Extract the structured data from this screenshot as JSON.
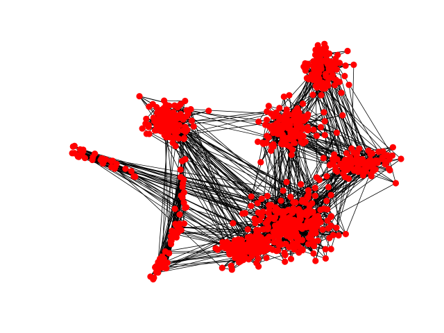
{
  "figure": {
    "background": "#ffffff",
    "node_color": "#ff0000",
    "edge_color": "#000000"
  },
  "graph": {
    "type": "network",
    "node_shape": "circle",
    "clusters": [
      {
        "id": "top-right",
        "size": 110
      },
      {
        "id": "upper-center",
        "size": 150
      },
      {
        "id": "upper-left",
        "size": 120
      },
      {
        "id": "right",
        "size": 110
      },
      {
        "id": "lower-center",
        "size": 230
      },
      {
        "id": "lower-middle",
        "size": 110
      },
      {
        "id": "left-tail",
        "size": 22
      },
      {
        "id": "lower-left-tail",
        "size": 46
      }
    ]
  }
}
